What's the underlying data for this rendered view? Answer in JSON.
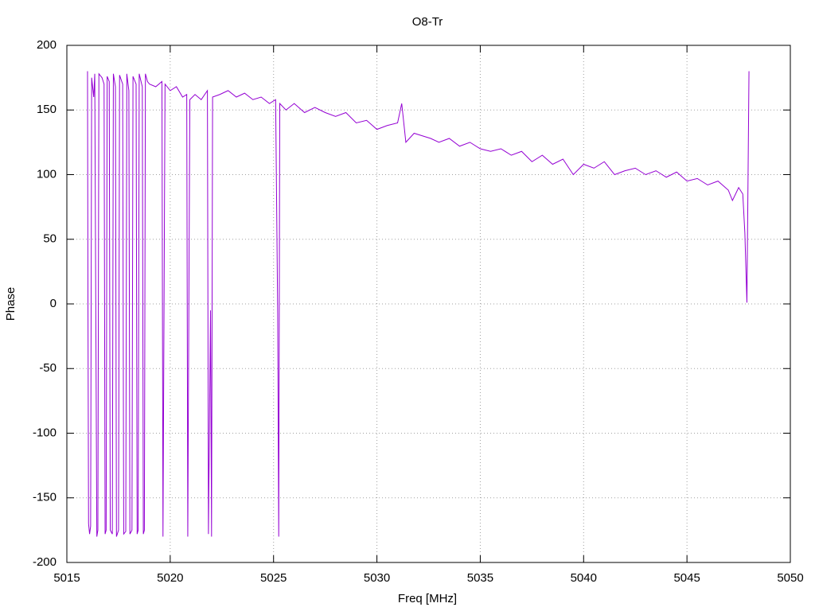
{
  "chart_data": {
    "type": "line",
    "title": "O8-Tr",
    "x_label": "Freq [MHz]",
    "y_label": "Phase",
    "xlim": [
      5015,
      5050
    ],
    "xticks": [
      5015,
      5020,
      5025,
      5030,
      5035,
      5040,
      5045,
      5050
    ],
    "ylim": [
      -200,
      200
    ],
    "yticks": [
      -200,
      -150,
      -100,
      -50,
      0,
      50,
      100,
      150,
      200
    ],
    "grid": true,
    "x": [
      5016.0,
      5016.02,
      5016.05,
      5016.1,
      5016.15,
      5016.2,
      5016.3,
      5016.35,
      5016.4,
      5016.45,
      5016.5,
      5016.55,
      5016.7,
      5016.8,
      5016.85,
      5016.9,
      5016.95,
      5017.05,
      5017.1,
      5017.2,
      5017.25,
      5017.35,
      5017.4,
      5017.5,
      5017.55,
      5017.7,
      5017.75,
      5017.85,
      5017.9,
      5018.0,
      5018.05,
      5018.15,
      5018.2,
      5018.35,
      5018.4,
      5018.45,
      5018.5,
      5018.65,
      5018.7,
      5018.75,
      5018.8,
      5018.9,
      5019.0,
      5019.3,
      5019.6,
      5019.65,
      5019.7,
      5019.75,
      5020.0,
      5020.3,
      5020.6,
      5020.8,
      5020.85,
      5020.9,
      5020.95,
      5021.2,
      5021.5,
      5021.8,
      5021.85,
      5021.95,
      5022.0,
      5022.05,
      5022.4,
      5022.8,
      5023.2,
      5023.6,
      5024.0,
      5024.4,
      5024.8,
      5025.1,
      5025.2,
      5025.25,
      5025.3,
      5025.6,
      5026.0,
      5026.5,
      5027.0,
      5027.5,
      5028.0,
      5028.5,
      5029.0,
      5029.5,
      5030.0,
      5030.5,
      5031.0,
      5031.2,
      5031.4,
      5031.8,
      5032.2,
      5032.6,
      5033.0,
      5033.5,
      5034.0,
      5034.5,
      5035.0,
      5035.5,
      5036.0,
      5036.5,
      5037.0,
      5037.5,
      5038.0,
      5038.5,
      5039.0,
      5039.5,
      5040.0,
      5040.5,
      5041.0,
      5041.5,
      5042.0,
      5042.5,
      5043.0,
      5043.5,
      5044.0,
      5044.5,
      5045.0,
      5045.5,
      5046.0,
      5046.5,
      5047.0,
      5047.2,
      5047.5,
      5047.7,
      5047.8,
      5047.9,
      5047.95,
      5048.0
    ],
    "series": [
      {
        "name": "O8-Tr",
        "color": "#9400d3",
        "values": [
          180,
          5,
          -170,
          -178,
          -172,
          175,
          160,
          178,
          -5,
          -180,
          -175,
          178,
          175,
          170,
          -178,
          -175,
          176,
          172,
          -175,
          -178,
          178,
          168,
          -180,
          -175,
          177,
          170,
          -178,
          -176,
          178,
          165,
          -178,
          -175,
          176,
          170,
          -178,
          -175,
          178,
          168,
          -178,
          -175,
          178,
          172,
          170,
          168,
          172,
          -180,
          -5,
          170,
          165,
          168,
          160,
          162,
          -180,
          -8,
          158,
          162,
          158,
          165,
          -178,
          -5,
          -180,
          160,
          162,
          165,
          160,
          163,
          158,
          160,
          155,
          158,
          -8,
          -180,
          155,
          150,
          155,
          148,
          152,
          148,
          145,
          148,
          140,
          142,
          135,
          138,
          140,
          155,
          125,
          132,
          130,
          128,
          125,
          128,
          122,
          125,
          120,
          118,
          120,
          115,
          118,
          110,
          115,
          108,
          112,
          100,
          108,
          105,
          110,
          100,
          103,
          105,
          100,
          103,
          98,
          102,
          95,
          97,
          92,
          95,
          88,
          80,
          90,
          85,
          55,
          1,
          90,
          180
        ]
      }
    ]
  }
}
